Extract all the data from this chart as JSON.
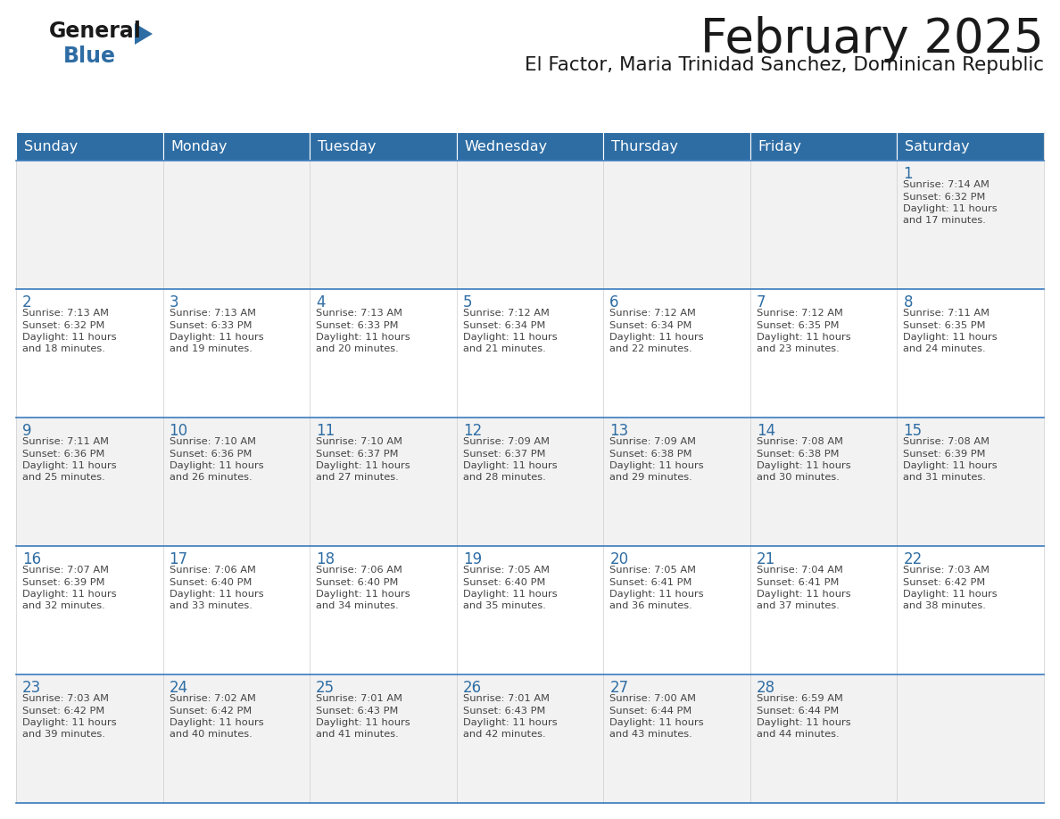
{
  "title": "February 2025",
  "subtitle": "El Factor, Maria Trinidad Sanchez, Dominican Republic",
  "header_bg": "#2E6DA4",
  "header_text_color": "#FFFFFF",
  "cell_bg_odd": "#F2F2F2",
  "cell_bg_even": "#FFFFFF",
  "day_number_color": "#2E6DA4",
  "text_color": "#444444",
  "border_color": "#3A7BBF",
  "days_of_week": [
    "Sunday",
    "Monday",
    "Tuesday",
    "Wednesday",
    "Thursday",
    "Friday",
    "Saturday"
  ],
  "weeks": [
    [
      {
        "day": "",
        "sunrise": "",
        "sunset": "",
        "daylight": ""
      },
      {
        "day": "",
        "sunrise": "",
        "sunset": "",
        "daylight": ""
      },
      {
        "day": "",
        "sunrise": "",
        "sunset": "",
        "daylight": ""
      },
      {
        "day": "",
        "sunrise": "",
        "sunset": "",
        "daylight": ""
      },
      {
        "day": "",
        "sunrise": "",
        "sunset": "",
        "daylight": ""
      },
      {
        "day": "",
        "sunrise": "",
        "sunset": "",
        "daylight": ""
      },
      {
        "day": "1",
        "sunrise": "7:14 AM",
        "sunset": "6:32 PM",
        "daylight": "11 hours and 17 minutes."
      }
    ],
    [
      {
        "day": "2",
        "sunrise": "7:13 AM",
        "sunset": "6:32 PM",
        "daylight": "11 hours and 18 minutes."
      },
      {
        "day": "3",
        "sunrise": "7:13 AM",
        "sunset": "6:33 PM",
        "daylight": "11 hours and 19 minutes."
      },
      {
        "day": "4",
        "sunrise": "7:13 AM",
        "sunset": "6:33 PM",
        "daylight": "11 hours and 20 minutes."
      },
      {
        "day": "5",
        "sunrise": "7:12 AM",
        "sunset": "6:34 PM",
        "daylight": "11 hours and 21 minutes."
      },
      {
        "day": "6",
        "sunrise": "7:12 AM",
        "sunset": "6:34 PM",
        "daylight": "11 hours and 22 minutes."
      },
      {
        "day": "7",
        "sunrise": "7:12 AM",
        "sunset": "6:35 PM",
        "daylight": "11 hours and 23 minutes."
      },
      {
        "day": "8",
        "sunrise": "7:11 AM",
        "sunset": "6:35 PM",
        "daylight": "11 hours and 24 minutes."
      }
    ],
    [
      {
        "day": "9",
        "sunrise": "7:11 AM",
        "sunset": "6:36 PM",
        "daylight": "11 hours and 25 minutes."
      },
      {
        "day": "10",
        "sunrise": "7:10 AM",
        "sunset": "6:36 PM",
        "daylight": "11 hours and 26 minutes."
      },
      {
        "day": "11",
        "sunrise": "7:10 AM",
        "sunset": "6:37 PM",
        "daylight": "11 hours and 27 minutes."
      },
      {
        "day": "12",
        "sunrise": "7:09 AM",
        "sunset": "6:37 PM",
        "daylight": "11 hours and 28 minutes."
      },
      {
        "day": "13",
        "sunrise": "7:09 AM",
        "sunset": "6:38 PM",
        "daylight": "11 hours and 29 minutes."
      },
      {
        "day": "14",
        "sunrise": "7:08 AM",
        "sunset": "6:38 PM",
        "daylight": "11 hours and 30 minutes."
      },
      {
        "day": "15",
        "sunrise": "7:08 AM",
        "sunset": "6:39 PM",
        "daylight": "11 hours and 31 minutes."
      }
    ],
    [
      {
        "day": "16",
        "sunrise": "7:07 AM",
        "sunset": "6:39 PM",
        "daylight": "11 hours and 32 minutes."
      },
      {
        "day": "17",
        "sunrise": "7:06 AM",
        "sunset": "6:40 PM",
        "daylight": "11 hours and 33 minutes."
      },
      {
        "day": "18",
        "sunrise": "7:06 AM",
        "sunset": "6:40 PM",
        "daylight": "11 hours and 34 minutes."
      },
      {
        "day": "19",
        "sunrise": "7:05 AM",
        "sunset": "6:40 PM",
        "daylight": "11 hours and 35 minutes."
      },
      {
        "day": "20",
        "sunrise": "7:05 AM",
        "sunset": "6:41 PM",
        "daylight": "11 hours and 36 minutes."
      },
      {
        "day": "21",
        "sunrise": "7:04 AM",
        "sunset": "6:41 PM",
        "daylight": "11 hours and 37 minutes."
      },
      {
        "day": "22",
        "sunrise": "7:03 AM",
        "sunset": "6:42 PM",
        "daylight": "11 hours and 38 minutes."
      }
    ],
    [
      {
        "day": "23",
        "sunrise": "7:03 AM",
        "sunset": "6:42 PM",
        "daylight": "11 hours and 39 minutes."
      },
      {
        "day": "24",
        "sunrise": "7:02 AM",
        "sunset": "6:42 PM",
        "daylight": "11 hours and 40 minutes."
      },
      {
        "day": "25",
        "sunrise": "7:01 AM",
        "sunset": "6:43 PM",
        "daylight": "11 hours and 41 minutes."
      },
      {
        "day": "26",
        "sunrise": "7:01 AM",
        "sunset": "6:43 PM",
        "daylight": "11 hours and 42 minutes."
      },
      {
        "day": "27",
        "sunrise": "7:00 AM",
        "sunset": "6:44 PM",
        "daylight": "11 hours and 43 minutes."
      },
      {
        "day": "28",
        "sunrise": "6:59 AM",
        "sunset": "6:44 PM",
        "daylight": "11 hours and 44 minutes."
      },
      {
        "day": "",
        "sunrise": "",
        "sunset": "",
        "daylight": ""
      }
    ]
  ]
}
